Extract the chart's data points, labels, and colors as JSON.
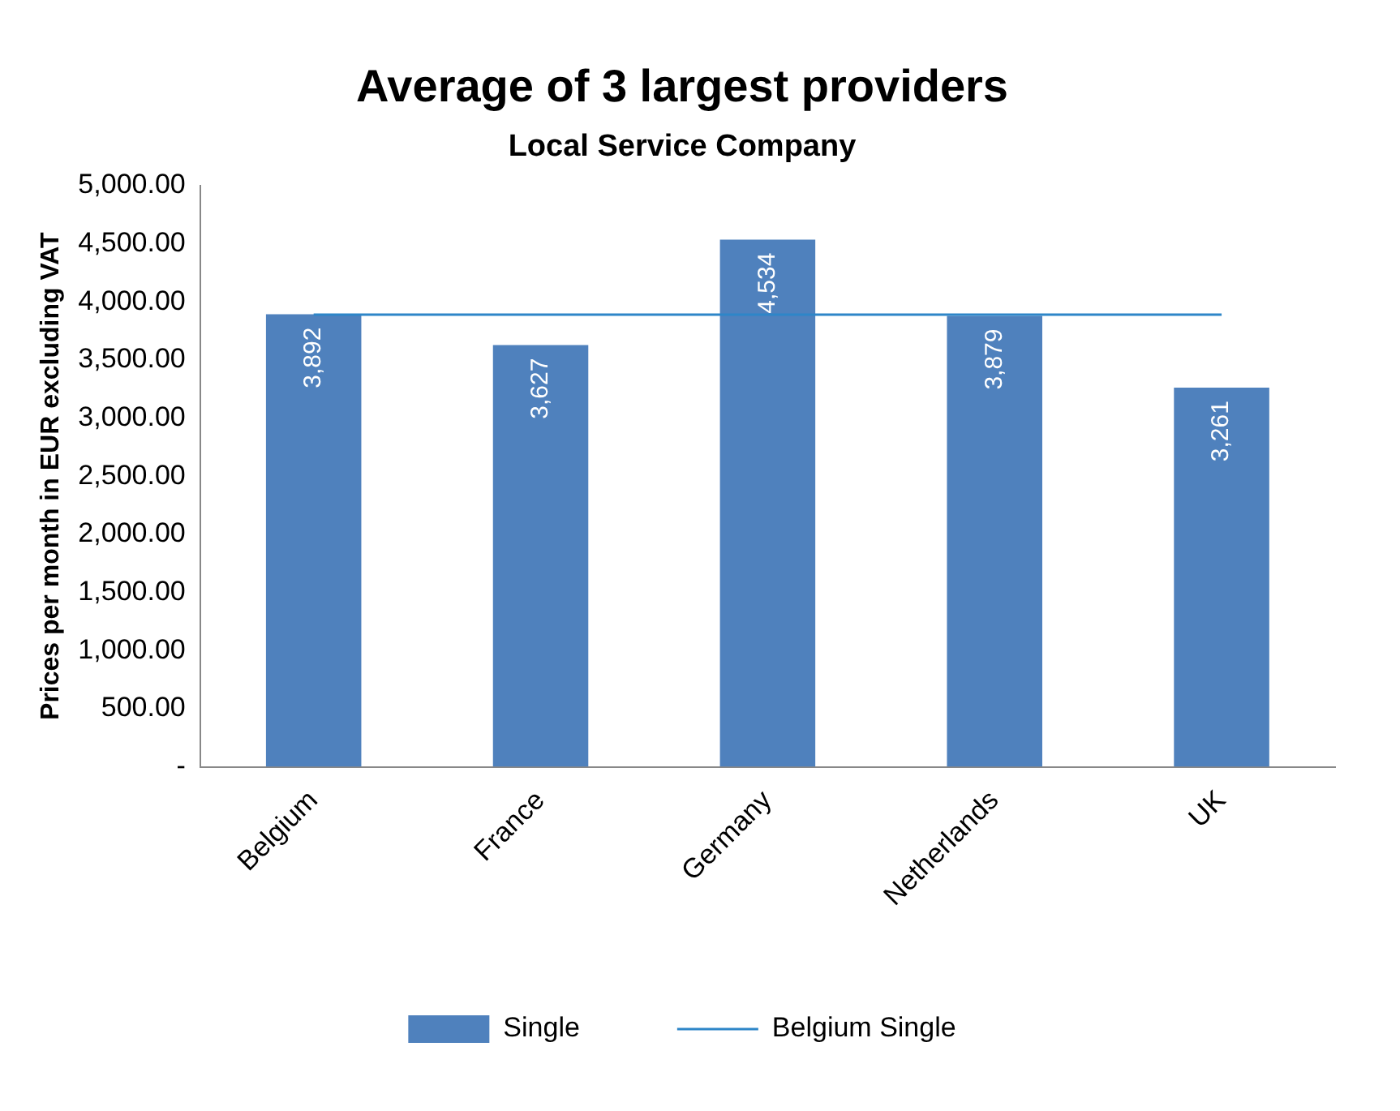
{
  "chart_data": {
    "type": "bar",
    "title": "Average of 3 largest providers",
    "subtitle": "Local Service Company",
    "ylabel": "Prices per month in EUR excluding VAT",
    "categories": [
      "Belgium",
      "France",
      "Germany",
      "Netherlands",
      "UK"
    ],
    "series": [
      {
        "name": "Single",
        "color": "#4f81bd",
        "values": [
          3892,
          3627,
          4534,
          3879,
          3261
        ],
        "value_labels": [
          "3,892",
          "3,627",
          "4,534",
          "3,879",
          "3,261"
        ]
      },
      {
        "name": "Belgium Single",
        "type": "line",
        "color": "#2e86c8",
        "values": [
          3890,
          3890,
          3890,
          3890,
          3890
        ]
      }
    ],
    "ylim": [
      0,
      5000
    ],
    "yticks": [
      {
        "value": 0,
        "label": "-"
      },
      {
        "value": 500,
        "label": "500.00"
      },
      {
        "value": 1000,
        "label": "1,000.00"
      },
      {
        "value": 1500,
        "label": "1,500.00"
      },
      {
        "value": 2000,
        "label": "2,000.00"
      },
      {
        "value": 2500,
        "label": "2,500.00"
      },
      {
        "value": 3000,
        "label": "3,000.00"
      },
      {
        "value": 3500,
        "label": "3,500.00"
      },
      {
        "value": 4000,
        "label": "4,000.00"
      },
      {
        "value": 4500,
        "label": "4,500.00"
      },
      {
        "value": 5000,
        "label": "5,000.00"
      }
    ],
    "grid": false,
    "legend": "bottom",
    "marker": "none"
  }
}
